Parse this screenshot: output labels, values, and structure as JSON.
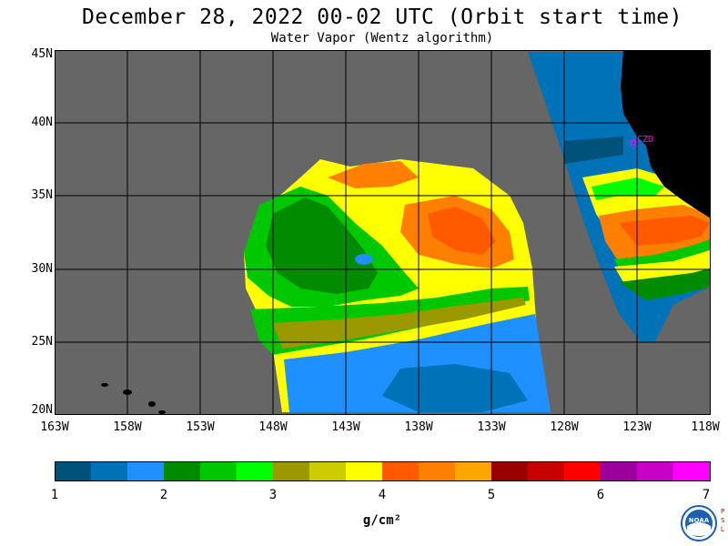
{
  "title": "December 28, 2022  00-02 UTC  (Orbit start time)",
  "subtitle": "Water Vapor (Wentz algorithm)",
  "lat_labels": [
    "45N",
    "40N",
    "35N",
    "30N",
    "25N",
    "20N"
  ],
  "lon_labels": [
    "163W",
    "158W",
    "153W",
    "148W",
    "143W",
    "138W",
    "133W",
    "128W",
    "123W",
    "118W"
  ],
  "site_label": "CZD",
  "colorbar": {
    "ticks": [
      "1",
      "2",
      "3",
      "4",
      "5",
      "6",
      "7"
    ],
    "units": "g/cm²",
    "colors": [
      "#00527a",
      "#0073b8",
      "#1e90ff",
      "#008b00",
      "#00c800",
      "#00ff00",
      "#9a9a00",
      "#cccc00",
      "#ffff00",
      "#ff5a00",
      "#ff7f00",
      "#ffa500",
      "#9b0000",
      "#c80000",
      "#ff0000",
      "#9b009b",
      "#c800c8",
      "#ff00ff"
    ]
  },
  "colors": {
    "ocean_nodata": "#666666",
    "land": "#000000",
    "grid": "#000000",
    "site_marker": "#ff00ff"
  },
  "logo": {
    "agency": "NOAA",
    "lab": "PSL"
  }
}
